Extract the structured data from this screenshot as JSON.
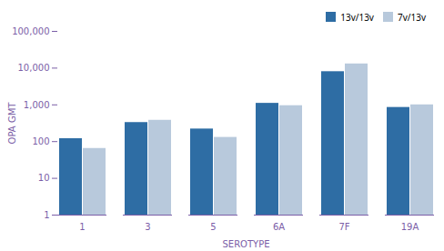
{
  "chart_data": {
    "type": "bar",
    "categories": [
      "1",
      "3",
      "5",
      "6A",
      "7F",
      "19A"
    ],
    "series": [
      {
        "name": "13v/13v",
        "color": "#2E6DA4",
        "values": [
          120,
          330,
          220,
          1100,
          8000,
          850
        ]
      },
      {
        "name": "7v/13v",
        "color": "#B8C9DC",
        "values": [
          65,
          380,
          130,
          950,
          13000,
          1000
        ]
      }
    ],
    "xlabel": "SEROTYPE",
    "ylabel": "OPA GMT",
    "log": "y",
    "ylim": [
      1,
      100000
    ],
    "yticks": [
      1,
      10,
      100,
      {
        "value": 1000,
        "label": "1,000"
      },
      {
        "value": 10000,
        "label": "10,000"
      },
      {
        "value": 100000,
        "label": "100,000"
      }
    ],
    "legend": "upper right",
    "grid": false
  }
}
